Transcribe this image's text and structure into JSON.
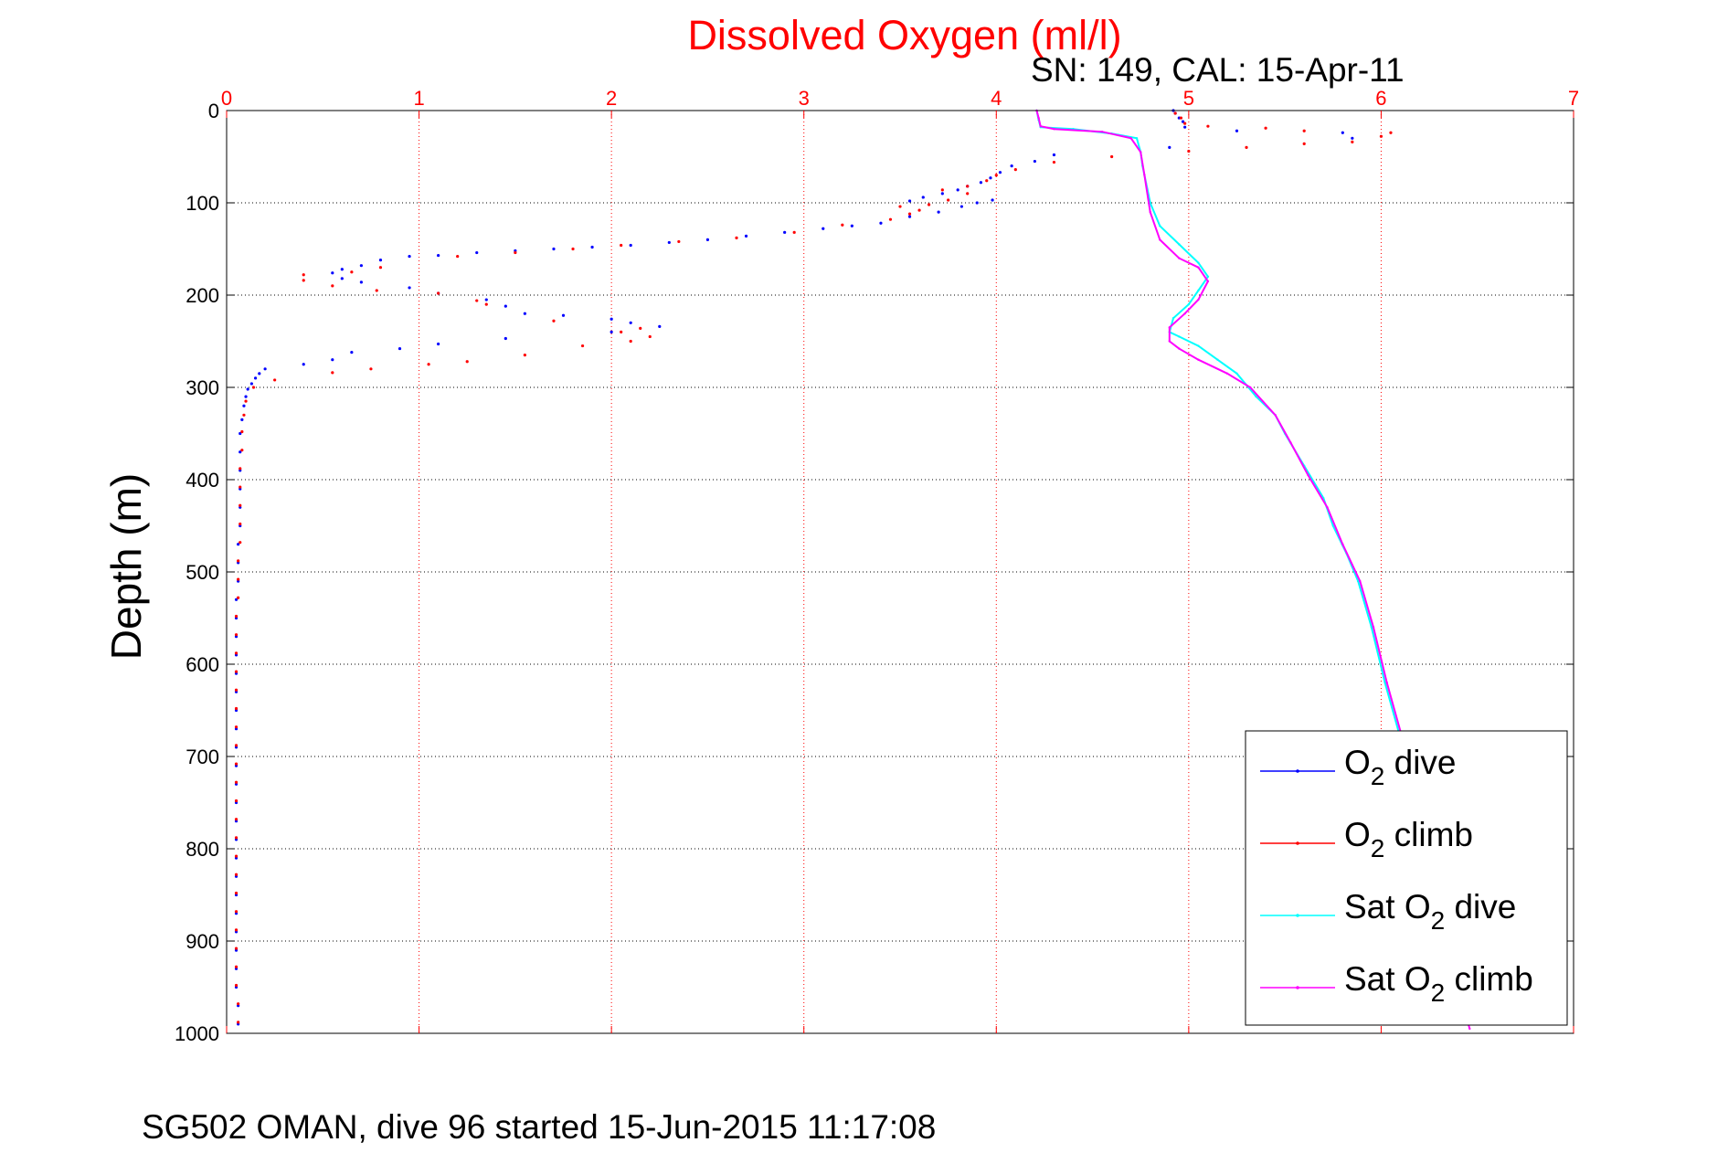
{
  "chart_data": {
    "type": "scatter",
    "title": "Dissolved Oxygen (ml/l)",
    "subtitle": "SN: 149, CAL: 15-Apr-11",
    "ylabel": "Depth (m)",
    "xlabel": "",
    "footer": "SG502 OMAN, dive 96 started 15-Jun-2015 11:17:08",
    "xlim": [
      0,
      7
    ],
    "ylim": [
      0,
      1000
    ],
    "y_reversed": true,
    "x_axis_position": "top",
    "xticks": [
      "0",
      "1",
      "2",
      "3",
      "4",
      "5",
      "6",
      "7"
    ],
    "yticks": [
      "0",
      "100",
      "200",
      "300",
      "400",
      "500",
      "600",
      "700",
      "800",
      "900",
      "1000"
    ],
    "grid": true,
    "legend_position": "bottom-right",
    "colors": {
      "dive": "#0000ff",
      "climb": "#ff0000",
      "sat_dive": "#00ffff",
      "sat_climb": "#ff00ff",
      "title": "#ff0000"
    },
    "series": [
      {
        "name": "O2 dive",
        "legend_main": "O",
        "legend_sub": "2",
        "legend_rest": " dive",
        "style": "dots",
        "color": "#0000ff",
        "points": [
          [
            4.92,
            0
          ],
          [
            4.93,
            3
          ],
          [
            4.95,
            8
          ],
          [
            4.97,
            12
          ],
          [
            4.98,
            18
          ],
          [
            5.25,
            22
          ],
          [
            5.8,
            24
          ],
          [
            5.85,
            30
          ],
          [
            4.9,
            40
          ],
          [
            4.3,
            48
          ],
          [
            4.2,
            55
          ],
          [
            4.08,
            60
          ],
          [
            4.02,
            67
          ],
          [
            3.97,
            73
          ],
          [
            3.92,
            78
          ],
          [
            3.85,
            82
          ],
          [
            3.8,
            86
          ],
          [
            3.72,
            90
          ],
          [
            3.62,
            94
          ],
          [
            3.55,
            98
          ],
          [
            3.9,
            100
          ],
          [
            3.98,
            97
          ],
          [
            3.82,
            104
          ],
          [
            3.7,
            110
          ],
          [
            3.55,
            115
          ],
          [
            3.4,
            122
          ],
          [
            3.25,
            125
          ],
          [
            3.1,
            128
          ],
          [
            2.9,
            132
          ],
          [
            2.7,
            136
          ],
          [
            2.5,
            140
          ],
          [
            2.3,
            143
          ],
          [
            2.1,
            146
          ],
          [
            1.9,
            148
          ],
          [
            1.7,
            150
          ],
          [
            1.5,
            152
          ],
          [
            1.3,
            154
          ],
          [
            1.1,
            157
          ],
          [
            0.95,
            158
          ],
          [
            0.8,
            162
          ],
          [
            0.7,
            168
          ],
          [
            0.6,
            172
          ],
          [
            0.55,
            176
          ],
          [
            0.6,
            182
          ],
          [
            0.7,
            186
          ],
          [
            0.95,
            192
          ],
          [
            1.1,
            198
          ],
          [
            1.35,
            205
          ],
          [
            1.45,
            212
          ],
          [
            1.55,
            220
          ],
          [
            1.75,
            222
          ],
          [
            2.0,
            226
          ],
          [
            2.1,
            230
          ],
          [
            2.25,
            234
          ],
          [
            2.0,
            240
          ],
          [
            1.45,
            247
          ],
          [
            1.1,
            253
          ],
          [
            0.9,
            258
          ],
          [
            0.65,
            262
          ],
          [
            0.55,
            270
          ],
          [
            0.4,
            275
          ],
          [
            0.2,
            280
          ],
          [
            0.17,
            285
          ],
          [
            0.15,
            290
          ],
          [
            0.13,
            296
          ],
          [
            0.11,
            302
          ],
          [
            0.1,
            310
          ],
          [
            0.09,
            320
          ],
          [
            0.08,
            335
          ],
          [
            0.07,
            350
          ],
          [
            0.07,
            370
          ],
          [
            0.07,
            390
          ],
          [
            0.07,
            410
          ],
          [
            0.07,
            430
          ],
          [
            0.07,
            450
          ],
          [
            0.06,
            470
          ],
          [
            0.06,
            490
          ],
          [
            0.06,
            510
          ],
          [
            0.05,
            530
          ],
          [
            0.05,
            550
          ],
          [
            0.05,
            570
          ],
          [
            0.05,
            590
          ],
          [
            0.05,
            610
          ],
          [
            0.05,
            630
          ],
          [
            0.05,
            650
          ],
          [
            0.05,
            670
          ],
          [
            0.05,
            690
          ],
          [
            0.05,
            710
          ],
          [
            0.05,
            730
          ],
          [
            0.05,
            750
          ],
          [
            0.05,
            770
          ],
          [
            0.05,
            790
          ],
          [
            0.05,
            810
          ],
          [
            0.05,
            830
          ],
          [
            0.05,
            850
          ],
          [
            0.05,
            870
          ],
          [
            0.05,
            890
          ],
          [
            0.05,
            910
          ],
          [
            0.05,
            930
          ],
          [
            0.05,
            950
          ],
          [
            0.06,
            970
          ],
          [
            0.06,
            990
          ]
        ]
      },
      {
        "name": "O2 climb",
        "legend_main": "O",
        "legend_sub": "2",
        "legend_rest": " climb",
        "style": "dots",
        "color": "#ff0000",
        "points": [
          [
            0.06,
            988
          ],
          [
            0.06,
            968
          ],
          [
            0.05,
            948
          ],
          [
            0.05,
            928
          ],
          [
            0.05,
            908
          ],
          [
            0.05,
            888
          ],
          [
            0.05,
            868
          ],
          [
            0.05,
            848
          ],
          [
            0.05,
            828
          ],
          [
            0.05,
            808
          ],
          [
            0.05,
            788
          ],
          [
            0.05,
            768
          ],
          [
            0.05,
            748
          ],
          [
            0.05,
            728
          ],
          [
            0.05,
            708
          ],
          [
            0.05,
            688
          ],
          [
            0.05,
            668
          ],
          [
            0.05,
            648
          ],
          [
            0.05,
            628
          ],
          [
            0.05,
            608
          ],
          [
            0.05,
            588
          ],
          [
            0.05,
            568
          ],
          [
            0.05,
            548
          ],
          [
            0.06,
            528
          ],
          [
            0.06,
            508
          ],
          [
            0.06,
            488
          ],
          [
            0.07,
            468
          ],
          [
            0.07,
            448
          ],
          [
            0.07,
            428
          ],
          [
            0.07,
            408
          ],
          [
            0.07,
            388
          ],
          [
            0.08,
            368
          ],
          [
            0.08,
            348
          ],
          [
            0.09,
            330
          ],
          [
            0.1,
            315
          ],
          [
            0.14,
            300
          ],
          [
            0.25,
            292
          ],
          [
            0.55,
            284
          ],
          [
            0.75,
            280
          ],
          [
            1.05,
            275
          ],
          [
            1.25,
            272
          ],
          [
            1.55,
            265
          ],
          [
            1.85,
            255
          ],
          [
            2.1,
            250
          ],
          [
            2.2,
            245
          ],
          [
            2.05,
            240
          ],
          [
            2.15,
            236
          ],
          [
            1.7,
            228
          ],
          [
            1.35,
            210
          ],
          [
            1.3,
            206
          ],
          [
            1.1,
            198
          ],
          [
            0.78,
            195
          ],
          [
            0.55,
            190
          ],
          [
            0.4,
            184
          ],
          [
            0.4,
            178
          ],
          [
            0.65,
            175
          ],
          [
            0.8,
            170
          ],
          [
            1.2,
            158
          ],
          [
            1.5,
            154
          ],
          [
            1.8,
            150
          ],
          [
            2.05,
            146
          ],
          [
            2.35,
            142
          ],
          [
            2.65,
            138
          ],
          [
            2.95,
            132
          ],
          [
            3.2,
            124
          ],
          [
            3.45,
            118
          ],
          [
            3.55,
            112
          ],
          [
            3.6,
            108
          ],
          [
            3.5,
            104
          ],
          [
            3.65,
            102
          ],
          [
            3.75,
            97
          ],
          [
            3.85,
            90
          ],
          [
            3.72,
            86
          ],
          [
            3.85,
            82
          ],
          [
            3.95,
            76
          ],
          [
            4.0,
            70
          ],
          [
            4.1,
            64
          ],
          [
            4.3,
            56
          ],
          [
            4.6,
            50
          ],
          [
            5.0,
            44
          ],
          [
            5.3,
            40
          ],
          [
            5.6,
            36
          ],
          [
            5.85,
            34
          ],
          [
            6.0,
            28
          ],
          [
            6.05,
            24
          ],
          [
            5.6,
            22
          ],
          [
            5.4,
            19
          ],
          [
            5.1,
            17
          ],
          [
            4.98,
            14
          ],
          [
            4.96,
            8
          ],
          [
            4.93,
            3
          ]
        ]
      },
      {
        "name": "Sat O2 dive",
        "legend_main": "Sat O",
        "legend_sub": "2",
        "legend_rest": " dive",
        "style": "line",
        "color": "#00ffff",
        "points": [
          [
            4.21,
            0
          ],
          [
            4.22,
            10
          ],
          [
            4.23,
            18
          ],
          [
            4.4,
            20
          ],
          [
            4.6,
            25
          ],
          [
            4.73,
            30
          ],
          [
            4.75,
            45
          ],
          [
            4.76,
            60
          ],
          [
            4.8,
            100
          ],
          [
            4.85,
            125
          ],
          [
            4.95,
            145
          ],
          [
            5.05,
            165
          ],
          [
            5.1,
            180
          ],
          [
            5.05,
            195
          ],
          [
            5.0,
            210
          ],
          [
            4.92,
            225
          ],
          [
            4.9,
            240
          ],
          [
            4.95,
            245
          ],
          [
            5.05,
            255
          ],
          [
            5.15,
            270
          ],
          [
            5.25,
            285
          ],
          [
            5.35,
            310
          ],
          [
            5.45,
            330
          ],
          [
            5.5,
            350
          ],
          [
            5.6,
            385
          ],
          [
            5.7,
            420
          ],
          [
            5.75,
            450
          ],
          [
            5.82,
            480
          ],
          [
            5.88,
            510
          ],
          [
            5.95,
            560
          ],
          [
            6.02,
            620
          ],
          [
            6.1,
            680
          ],
          [
            6.18,
            750
          ],
          [
            6.25,
            830
          ],
          [
            6.35,
            920
          ],
          [
            6.45,
            990
          ]
        ]
      },
      {
        "name": "Sat O2 climb",
        "legend_main": "Sat O",
        "legend_sub": "2",
        "legend_rest": " climb",
        "style": "line",
        "color": "#ff00ff",
        "points": [
          [
            6.46,
            995
          ],
          [
            6.36,
            920
          ],
          [
            6.26,
            830
          ],
          [
            6.19,
            750
          ],
          [
            6.11,
            680
          ],
          [
            6.03,
            620
          ],
          [
            5.96,
            560
          ],
          [
            5.89,
            510
          ],
          [
            5.8,
            470
          ],
          [
            5.72,
            430
          ],
          [
            5.62,
            395
          ],
          [
            5.53,
            360
          ],
          [
            5.45,
            330
          ],
          [
            5.32,
            300
          ],
          [
            5.2,
            285
          ],
          [
            5.05,
            270
          ],
          [
            4.95,
            258
          ],
          [
            4.9,
            250
          ],
          [
            4.9,
            235
          ],
          [
            4.98,
            220
          ],
          [
            5.05,
            205
          ],
          [
            5.1,
            185
          ],
          [
            5.05,
            170
          ],
          [
            4.95,
            160
          ],
          [
            4.85,
            140
          ],
          [
            4.8,
            110
          ],
          [
            4.77,
            70
          ],
          [
            4.75,
            45
          ],
          [
            4.7,
            30
          ],
          [
            4.55,
            23
          ],
          [
            4.3,
            20
          ],
          [
            4.23,
            17
          ],
          [
            4.22,
            8
          ],
          [
            4.21,
            0
          ]
        ]
      }
    ]
  }
}
